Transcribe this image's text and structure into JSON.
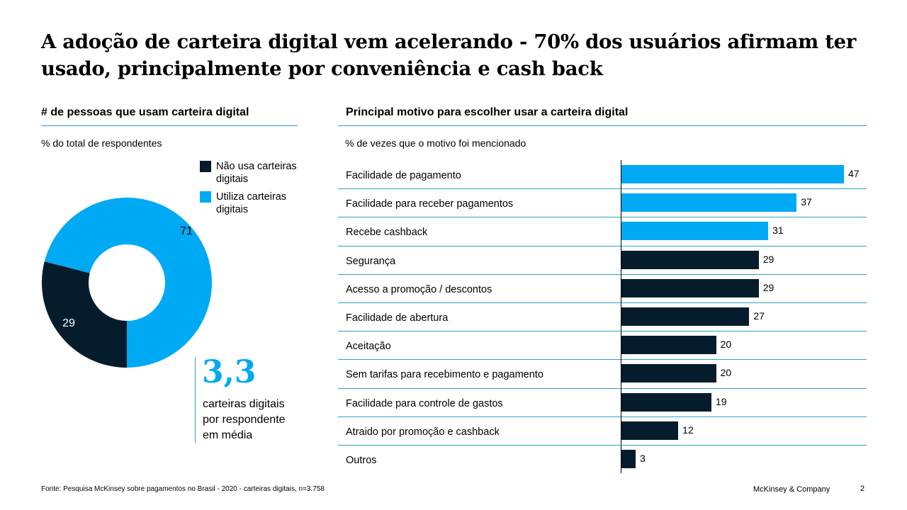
{
  "title": "A adoção de carteira digital vem acelerando - 70% dos usuários afirmam ter usado, principalmente por conveniência e cash back",
  "colors": {
    "dark": "#051C2C",
    "blue": "#00A9F4",
    "rule": "#2EA3C4"
  },
  "left": {
    "header": "# de pessoas que usam carteira digital",
    "subtitle": "% do total de respondentes",
    "stat_value": "3,3",
    "stat_note": [
      "carteiras digitais",
      "por respondente",
      "em média"
    ]
  },
  "right": {
    "header": "Principal motivo para escolher usar a carteira digital",
    "subtitle": "% de vezes que o motivo foi mencionado"
  },
  "chart_data": [
    {
      "type": "pie",
      "donut": true,
      "slices": [
        {
          "name": "Não usa carteiras digitais",
          "value": 29,
          "label": "29",
          "color": "#051C2C"
        },
        {
          "name": "Utiliza carteiras digitais",
          "value": 71,
          "label": "71",
          "color": "#00A9F4"
        }
      ],
      "legend": "top-right"
    },
    {
      "type": "bar",
      "orientation": "horizontal",
      "categories": [
        "Facilidade de pagamento",
        "Facilidade para receber pagamentos",
        "Recebe cashback",
        "Segurança",
        "Acesso a promoção / descontos",
        "Facilidade de abertura",
        "Aceitação",
        "Sem tarifas para recebimento e pagamento",
        "Facilidade para controle de gastos",
        "Atraido por promoção e cashback",
        "Outros"
      ],
      "values": [
        47,
        37,
        31,
        29,
        29,
        27,
        20,
        20,
        19,
        12,
        3
      ],
      "highlight_colors": [
        "#00A9F4",
        "#00A9F4",
        "#00A9F4",
        "#051C2C",
        "#051C2C",
        "#051C2C",
        "#051C2C",
        "#051C2C",
        "#051C2C",
        "#051C2C",
        "#051C2C"
      ],
      "xlim": [
        0,
        47
      ]
    }
  ],
  "footer": {
    "source": "Fonte: Pesquisa McKinsey sobre pagamentos no Brasil - 2020 - carteiras digitais, n=3.758",
    "brand": "McKinsey & Company",
    "page": "2"
  }
}
